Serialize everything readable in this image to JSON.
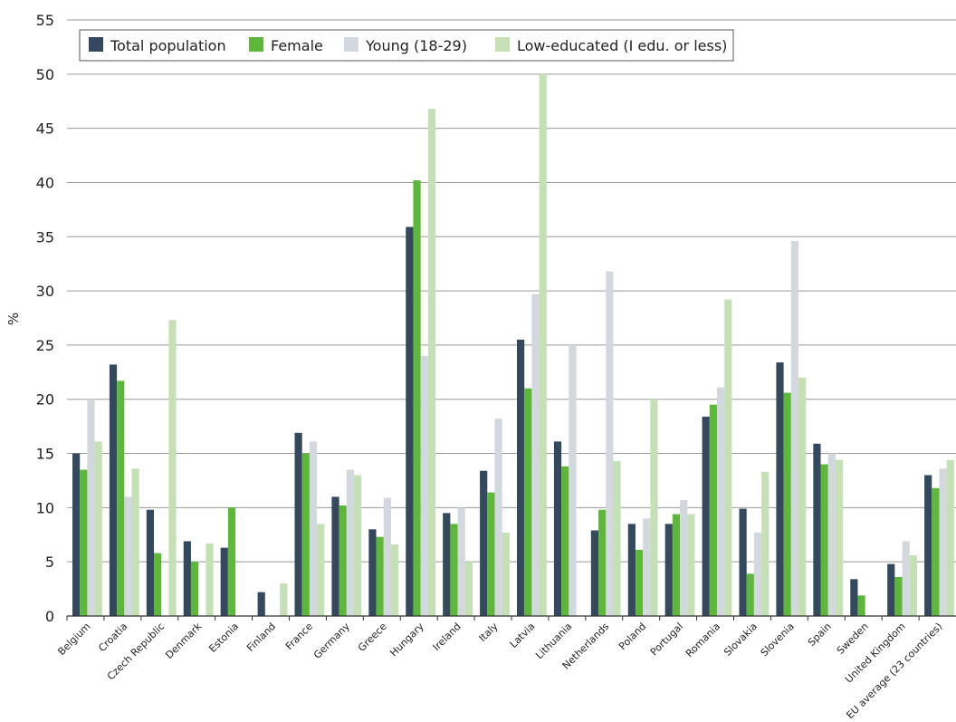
{
  "chart_data": {
    "type": "bar",
    "ylabel": "%",
    "ylim": [
      0,
      55
    ],
    "yticks": [
      0,
      5,
      10,
      15,
      20,
      25,
      30,
      35,
      40,
      45,
      50,
      55
    ],
    "grid": true,
    "legend_position": "top-left",
    "categories": [
      "Belgium",
      "Croatia",
      "Czech Republic",
      "Denmark",
      "Estonia",
      "Finland",
      "France",
      "Germany",
      "Greece",
      "Hungary",
      "Ireland",
      "Italy",
      "Latvia",
      "Lithuania",
      "Netherlands",
      "Poland",
      "Portugal",
      "Romania",
      "Slovakia",
      "Slovenia",
      "Spain",
      "Sweden",
      "United Kingdom",
      "EU average (23 countries)"
    ],
    "series": [
      {
        "name": "Total population",
        "color": "#34495e",
        "values": [
          15.0,
          23.2,
          9.8,
          6.9,
          6.3,
          2.2,
          16.9,
          11.0,
          8.0,
          35.9,
          9.5,
          13.4,
          25.5,
          16.1,
          7.9,
          8.5,
          8.5,
          18.4,
          9.9,
          23.4,
          15.9,
          3.4,
          4.8,
          13.0
        ]
      },
      {
        "name": "Female",
        "color": "#5db83a",
        "values": [
          13.5,
          21.7,
          5.8,
          5.0,
          10.0,
          0,
          15.0,
          10.2,
          7.3,
          40.2,
          8.5,
          11.4,
          21.0,
          13.8,
          9.8,
          6.1,
          9.4,
          19.5,
          3.9,
          20.6,
          14.0,
          1.9,
          3.6,
          11.8
        ]
      },
      {
        "name": "Young (18-29)",
        "color": "#d3d7de",
        "values": [
          20.0,
          11.0,
          0,
          0,
          0,
          0,
          16.1,
          13.5,
          10.9,
          24.0,
          10.0,
          18.2,
          29.7,
          25.0,
          31.8,
          9.0,
          10.7,
          21.1,
          7.7,
          34.6,
          15.0,
          0,
          6.9,
          13.6
        ]
      },
      {
        "name": "Low-educated (I edu. or less)",
        "color": "#c4e0b4",
        "values": [
          16.1,
          13.6,
          27.3,
          6.7,
          0,
          3.0,
          8.5,
          13.0,
          6.6,
          46.8,
          5.0,
          7.7,
          50.0,
          0,
          14.3,
          20.0,
          9.4,
          29.2,
          13.3,
          22.0,
          14.4,
          0,
          5.6,
          14.4
        ]
      }
    ]
  }
}
